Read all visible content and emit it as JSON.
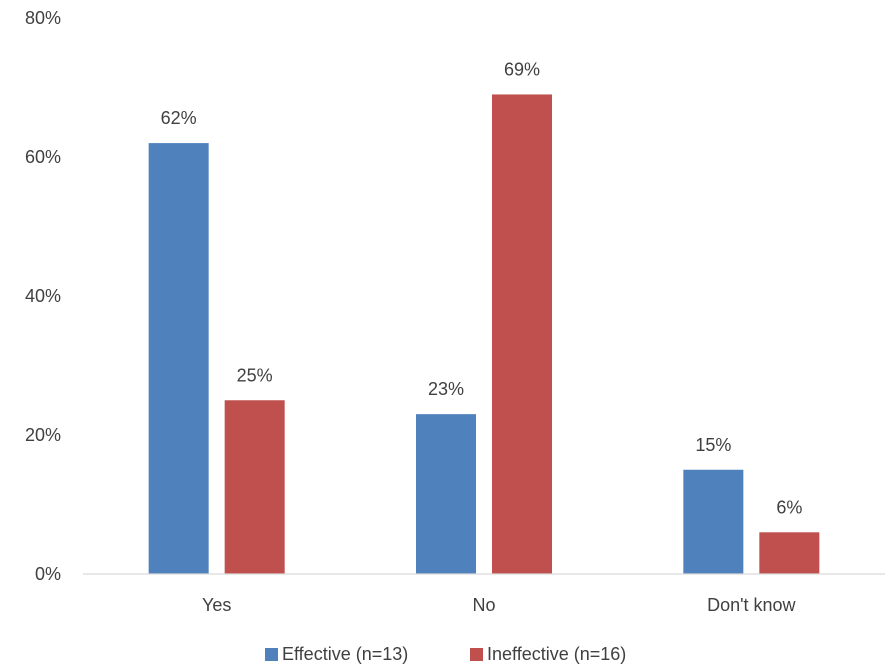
{
  "chart_data": {
    "type": "bar",
    "categories": [
      "Yes",
      "No",
      "Don't know"
    ],
    "series": [
      {
        "name": "Effective (n=13)",
        "color": "#4F81BD",
        "values": [
          62,
          23,
          15
        ],
        "labels": [
          "62%",
          "23%",
          "15%"
        ]
      },
      {
        "name": "Ineffective (n=16)",
        "color": "#C0504D",
        "values": [
          25,
          69,
          6
        ],
        "labels": [
          "25%",
          "69%",
          "6%"
        ]
      }
    ],
    "ylim": [
      0,
      80
    ],
    "yticks": [
      0,
      20,
      40,
      60,
      80
    ],
    "ytick_labels": [
      "0%",
      "20%",
      "40%",
      "60%",
      "80%"
    ],
    "grid": false,
    "legend_position": "bottom",
    "title": "",
    "xlabel": "",
    "ylabel": ""
  }
}
